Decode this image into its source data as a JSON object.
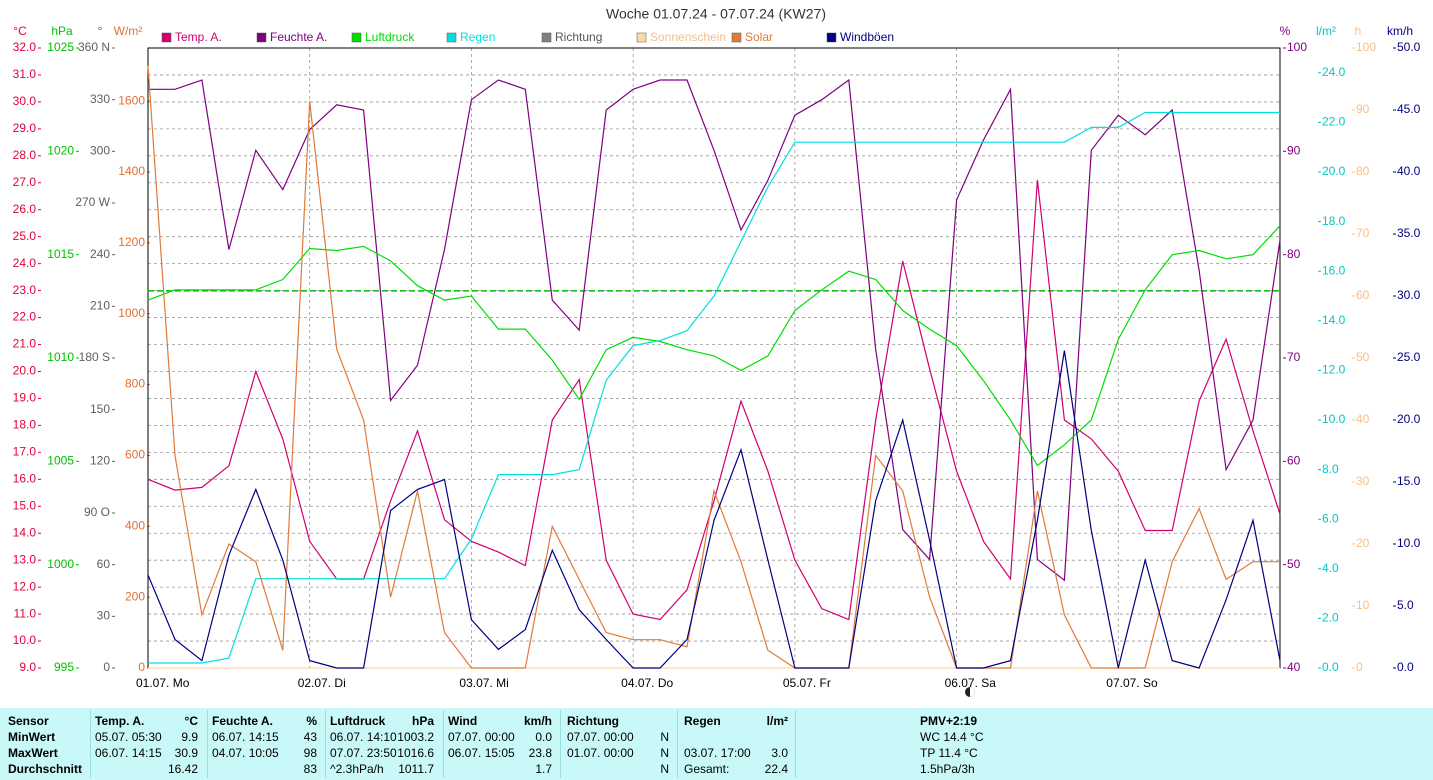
{
  "chart_data": {
    "type": "line",
    "title": "Woche 01.07.24 - 07.07.24 (KW27)",
    "x": [
      0,
      4,
      8,
      12,
      16,
      20,
      24,
      28,
      32,
      36,
      40,
      44,
      48,
      52,
      56,
      60,
      64,
      68,
      72,
      76,
      80,
      84,
      88,
      92,
      96,
      100,
      104,
      108,
      112,
      116,
      120,
      124,
      128,
      132,
      136,
      140,
      144,
      148,
      152,
      156,
      160,
      164,
      168
    ],
    "xlim": [
      0,
      168
    ],
    "xticks": [
      {
        "value": 0,
        "label": "01.07. Mo"
      },
      {
        "value": 24,
        "label": "02.07. Di"
      },
      {
        "value": 48,
        "label": "03.07. Mi"
      },
      {
        "value": 72,
        "label": "04.07. Do"
      },
      {
        "value": 96,
        "label": "05.07. Fr"
      },
      {
        "value": 120,
        "label": "06.07. Sa"
      },
      {
        "value": 144,
        "label": "07.07. So"
      }
    ],
    "grid": true,
    "axes": {
      "temp": {
        "label": "°C",
        "color": "#e0003c",
        "ylim": [
          9,
          32
        ],
        "yticks": [
          {
            "value": 9,
            "label": "9.0"
          },
          {
            "value": 10,
            "label": "10.0"
          },
          {
            "value": 11,
            "label": "11.0"
          },
          {
            "value": 12,
            "label": "12.0"
          },
          {
            "value": 13,
            "label": "13.0"
          },
          {
            "value": 14,
            "label": "14.0"
          },
          {
            "value": 15,
            "label": "15.0"
          },
          {
            "value": 16,
            "label": "16.0"
          },
          {
            "value": 17,
            "label": "17.0"
          },
          {
            "value": 18,
            "label": "18.0"
          },
          {
            "value": 19,
            "label": "19.0"
          },
          {
            "value": 20,
            "label": "20.0"
          },
          {
            "value": 21,
            "label": "21.0"
          },
          {
            "value": 22,
            "label": "22.0"
          },
          {
            "value": 23,
            "label": "23.0"
          },
          {
            "value": 24,
            "label": "24.0"
          },
          {
            "value": 25,
            "label": "25.0"
          },
          {
            "value": 26,
            "label": "26.0"
          },
          {
            "value": 27,
            "label": "27.0"
          },
          {
            "value": 28,
            "label": "28.0"
          },
          {
            "value": 29,
            "label": "29.0"
          },
          {
            "value": 30,
            "label": "30.0"
          },
          {
            "value": 31,
            "label": "31.0"
          },
          {
            "value": 32,
            "label": "32.0"
          }
        ]
      },
      "pressure": {
        "label": "hPa",
        "color": "#00c000",
        "ylim": [
          995,
          1025
        ],
        "yticks": [
          995,
          1000,
          1005,
          1010,
          1015,
          1020,
          1025
        ]
      },
      "direction": {
        "label": "°",
        "color": "#606060",
        "ylim": [
          0,
          360
        ],
        "yticks": [
          0,
          30,
          60,
          {
            "value": 90,
            "label": "90 O"
          },
          120,
          150,
          {
            "value": 180,
            "label": "180 S"
          },
          210,
          240,
          {
            "value": 270,
            "label": "270 W"
          },
          300,
          330,
          {
            "value": 360,
            "label": "360 N"
          }
        ]
      },
      "solar": {
        "label": "W/m²",
        "color": "#e07030",
        "ylim": [
          0,
          1750
        ],
        "yticks": [
          0,
          200,
          400,
          600,
          800,
          1000,
          1200,
          1400,
          1600
        ]
      },
      "humidity": {
        "label": "%",
        "color": "#800080",
        "ylim": [
          40,
          100
        ],
        "yticks": [
          40,
          50,
          60,
          70,
          80,
          90,
          100
        ]
      },
      "rain": {
        "label": "l/m²",
        "color": "#00c8c8",
        "ylim": [
          0,
          25
        ],
        "yticks": [
          {
            "value": 0,
            "label": "0.0"
          },
          {
            "value": 2,
            "label": "2.0"
          },
          {
            "value": 4,
            "label": "4.0"
          },
          {
            "value": 6,
            "label": "6.0"
          },
          {
            "value": 8,
            "label": "8.0"
          },
          {
            "value": 10,
            "label": "10.0"
          },
          {
            "value": 12,
            "label": "12.0"
          },
          {
            "value": 14,
            "label": "14.0"
          },
          {
            "value": 16,
            "label": "16.0"
          },
          {
            "value": 18,
            "label": "18.0"
          },
          {
            "value": 20,
            "label": "20.0"
          },
          {
            "value": 22,
            "label": "22.0"
          },
          {
            "value": 24,
            "label": "24.0"
          }
        ]
      },
      "sunshine": {
        "label": "h",
        "color": "#f8c080",
        "ylim": [
          0,
          100
        ],
        "yticks": [
          0,
          10,
          20,
          30,
          40,
          50,
          60,
          70,
          80,
          90,
          100
        ]
      },
      "gust": {
        "label": "km/h",
        "color": "#000080",
        "ylim": [
          0,
          50
        ],
        "yticks": [
          {
            "value": 0,
            "label": "0.0"
          },
          {
            "value": 5,
            "label": "5.0"
          },
          {
            "value": 10,
            "label": "10.0"
          },
          {
            "value": 15,
            "label": "15.0"
          },
          {
            "value": 20,
            "label": "20.0"
          },
          {
            "value": 25,
            "label": "25.0"
          },
          {
            "value": 30,
            "label": "30.0"
          },
          {
            "value": 35,
            "label": "35.0"
          },
          {
            "value": 40,
            "label": "40.0"
          },
          {
            "value": 45,
            "label": "45.0"
          },
          {
            "value": 50,
            "label": "50.0"
          }
        ]
      }
    },
    "series": [
      {
        "name": "Temp. A.",
        "color": "#d0006f",
        "axis": "temp",
        "values": [
          16.0,
          15.6,
          15.7,
          16.5,
          20.0,
          17.5,
          13.7,
          12.3,
          12.3,
          15.2,
          17.8,
          14.5,
          13.7,
          13.3,
          12.8,
          18.2,
          19.7,
          13.0,
          11.0,
          10.8,
          11.9,
          15.2,
          18.9,
          16.3,
          13.0,
          11.2,
          10.8,
          18.2,
          24.1,
          20.1,
          16.3,
          13.7,
          12.3,
          27.1,
          18.2,
          17.5,
          16.3,
          14.1,
          14.1,
          18.9,
          21.2,
          17.8,
          14.7
        ]
      },
      {
        "name": "Feuchte A.",
        "color": "#800080",
        "axis": "humidity",
        "values": [
          96.0,
          96.0,
          96.9,
          80.5,
          90.1,
          86.3,
          92.1,
          94.5,
          94.0,
          65.9,
          69.3,
          80.5,
          95.0,
          96.9,
          96.0,
          75.6,
          72.7,
          94.0,
          96.0,
          96.9,
          96.9,
          90.1,
          82.4,
          87.2,
          93.5,
          95.0,
          96.9,
          70.8,
          53.4,
          50.5,
          85.3,
          91.1,
          96.0,
          50.5,
          48.5,
          90.1,
          93.5,
          91.6,
          94.0,
          78.5,
          59.2,
          64.0,
          81.4
        ]
      },
      {
        "name": "Luftdruck",
        "color": "#00dd00",
        "axis": "pressure",
        "values": [
          1012.8,
          1013.3,
          1013.3,
          1013.3,
          1013.3,
          1013.8,
          1015.3,
          1015.2,
          1015.4,
          1014.7,
          1013.5,
          1012.8,
          1013.0,
          1011.4,
          1011.4,
          1009.9,
          1008.0,
          1010.4,
          1011.0,
          1010.8,
          1010.4,
          1010.1,
          1009.4,
          1010.1,
          1012.3,
          1013.3,
          1014.2,
          1013.8,
          1012.3,
          1011.4,
          1010.6,
          1008.9,
          1007.0,
          1004.8,
          1005.8,
          1007.0,
          1010.9,
          1013.3,
          1015.0,
          1015.2,
          1014.8,
          1015.0,
          1016.4
        ]
      },
      {
        "name": "Regen",
        "color": "#00e0e0",
        "axis": "rain",
        "values": [
          0.2,
          0.2,
          0.2,
          0.4,
          3.6,
          3.6,
          3.6,
          3.6,
          3.6,
          3.6,
          3.6,
          3.6,
          5.2,
          7.8,
          7.8,
          7.8,
          8.0,
          11.6,
          13.0,
          13.2,
          13.6,
          15.0,
          17.2,
          19.4,
          21.2,
          21.2,
          21.2,
          21.2,
          21.2,
          21.2,
          21.2,
          21.2,
          21.2,
          21.2,
          21.2,
          21.8,
          21.8,
          22.4,
          22.4,
          22.4,
          22.4,
          22.4,
          22.4
        ]
      },
      {
        "name": "Richtung",
        "color": "#808080",
        "axis": "direction"
      },
      {
        "name": "Sonnenschein",
        "color": "#ffd8a8",
        "axis": "sunshine",
        "values": [
          0,
          0,
          0,
          0,
          0,
          0,
          0,
          0,
          0,
          0,
          0,
          0,
          0,
          0,
          0,
          0,
          0,
          0,
          0,
          0,
          0,
          0,
          0,
          0,
          0,
          0,
          0,
          0,
          0,
          0,
          0,
          0,
          0,
          0,
          0,
          0,
          0,
          0,
          0,
          0,
          0,
          0,
          0
        ]
      },
      {
        "name": "Solar",
        "color": "#e07a3a",
        "axis": "solar",
        "values": [
          1700,
          600,
          150,
          350,
          300,
          50,
          1600,
          900,
          700,
          200,
          500,
          100,
          0,
          0,
          0,
          400,
          250,
          100,
          80,
          80,
          60,
          500,
          300,
          50,
          0,
          0,
          0,
          600,
          500,
          200,
          0,
          0,
          0,
          500,
          150,
          0,
          0,
          0,
          300,
          450,
          250,
          300,
          300
        ]
      },
      {
        "name": "Windböen",
        "color": "#000080",
        "axis": "gust",
        "values": [
          7.5,
          2.3,
          0.6,
          9.1,
          14.4,
          8.7,
          0.6,
          0,
          0,
          12.7,
          14.4,
          15.2,
          3.9,
          1.5,
          3.1,
          9.5,
          4.7,
          2.3,
          0,
          0,
          2.3,
          11.9,
          17.6,
          8.7,
          0,
          0,
          0,
          13.5,
          20.0,
          10.3,
          0,
          0,
          0.6,
          11.9,
          25.6,
          11.1,
          0,
          8.7,
          0.6,
          0,
          5.5,
          11.9,
          0.6
        ]
      }
    ],
    "reference_line": {
      "value": 1013.25,
      "axis": "pressure",
      "color": "#00c000"
    }
  },
  "stats": {
    "header": {
      "sensor": "Sensor",
      "temp": "Temp. A.",
      "temp_unit": "°C",
      "hum": "Feuchte A.",
      "hum_unit": "%",
      "press": "Luftdruck",
      "press_unit": "hPa",
      "wind": "Wind",
      "wind_unit": "km/h",
      "dir": "Richtung",
      "rain": "Regen",
      "rain_unit": "l/m²",
      "pmv": "PMV+2:19"
    },
    "min": {
      "label": "MinWert",
      "temp_time": "05.07.  05:30",
      "temp": "9.9",
      "hum_time": "06.07.  14:15",
      "hum": "43",
      "press_time": "06.07.  14:10",
      "press": "1003.2",
      "wind_time": "07.07.  00:00",
      "wind": "0.0",
      "dir_time": "07.07.  00:00",
      "dir": "N",
      "pmv": "WC 14.4 °C"
    },
    "max": {
      "label": "MaxWert",
      "temp_time": "06.07.  14:15",
      "temp": "30.9",
      "hum_time": "04.07.  10:05",
      "hum": "98",
      "press_time": "07.07.  23:50",
      "press": "1016.6",
      "wind_time": "06.07.  15:05",
      "wind": "23.8",
      "dir_time": "01.07.  00:00",
      "dir": "N",
      "rain_time": "03.07.  17:00",
      "rain": "3.0",
      "pmv": "TP 11.4 °C"
    },
    "avg": {
      "label": "Durchschnitt",
      "temp": "16.42",
      "hum": "83",
      "press_trend": "^2.3hPa/h",
      "press": "1011.7",
      "wind": "1.7",
      "dir": "N",
      "rain_label": "Gesamt:",
      "rain": "22.4",
      "pmv": "1.5hPa/3h"
    }
  }
}
